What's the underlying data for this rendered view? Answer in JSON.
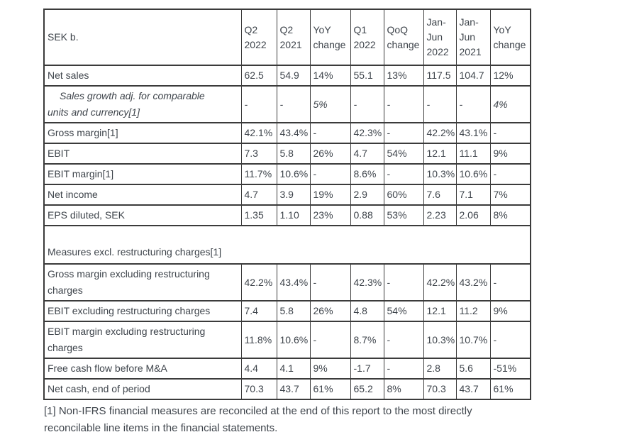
{
  "colors": {
    "text": "#3e444b",
    "border": "#3b3b3b",
    "background": "#ffffff"
  },
  "table": {
    "columns": [
      "SEK b.",
      "Q2 2022",
      "Q2 2021",
      "YoY change",
      "Q1 2022",
      "QoQ change",
      "Jan-Jun 2022",
      "Jan-Jun 2021",
      "YoY change"
    ],
    "rows_main": [
      {
        "label": "Net sales",
        "values": [
          "62.5",
          "54.9",
          "14%",
          "55.1",
          "13%",
          "117.5",
          "104.7",
          "12%"
        ]
      },
      {
        "label": "Sales growth adj. for comparable\nunits and currency[1]",
        "italic": true,
        "indent": true,
        "values": [
          "-",
          "-",
          "5%",
          "-",
          "-",
          "-",
          "-",
          "4%"
        ]
      },
      {
        "label": "Gross margin[1]",
        "values": [
          "42.1%",
          "43.4%",
          "-",
          "42.3%",
          "-",
          "42.2%",
          "43.1%",
          "-"
        ]
      },
      {
        "label": "EBIT",
        "values": [
          "7.3",
          "5.8",
          "26%",
          "4.7",
          "54%",
          "12.1",
          "11.1",
          "9%"
        ]
      },
      {
        "label": "EBIT margin[1]",
        "values": [
          "11.7%",
          "10.6%",
          "-",
          "8.6%",
          "-",
          "10.3%",
          "10.6%",
          "-"
        ]
      },
      {
        "label": "Net income",
        "values": [
          "4.7",
          "3.9",
          "19%",
          "2.9",
          "60%",
          "7.6",
          "7.1",
          "7%"
        ]
      },
      {
        "label": "EPS diluted, SEK",
        "values": [
          "1.35",
          "1.10",
          "23%",
          "0.88",
          "53%",
          "2.23",
          "2.06",
          "8%"
        ]
      }
    ],
    "section_title": "Measures excl. restructuring charges[1]",
    "rows_excl_restructuring": [
      {
        "label": "Gross margin excluding restructuring charges",
        "values": [
          "42.2%",
          "43.4%",
          "-",
          "42.3%",
          "-",
          "42.2%",
          "43.2%",
          "-"
        ]
      },
      {
        "label": "EBIT excluding restructuring charges",
        "values": [
          "7.4",
          "5.8",
          "26%",
          "4.8",
          "54%",
          "12.1",
          "11.2",
          "9%"
        ]
      },
      {
        "label": "EBIT margin excluding restructuring charges",
        "values": [
          "11.8%",
          "10.6%",
          "-",
          "8.7%",
          "-",
          "10.3%",
          "10.7%",
          "-"
        ]
      },
      {
        "label": "Free cash flow before M&A",
        "values": [
          "4.4",
          "4.1",
          "9%",
          "-1.7",
          "-",
          "2.8",
          "5.6",
          "-51%"
        ]
      },
      {
        "label": "Net cash, end of period",
        "values": [
          "70.3",
          "43.7",
          "61%",
          "65.2",
          "8%",
          "70.3",
          "43.7",
          "61%"
        ]
      }
    ]
  },
  "footnote": "[1] Non-IFRS financial measures are reconciled at the end of this report to the most directly reconcilable line items in the financial statements."
}
